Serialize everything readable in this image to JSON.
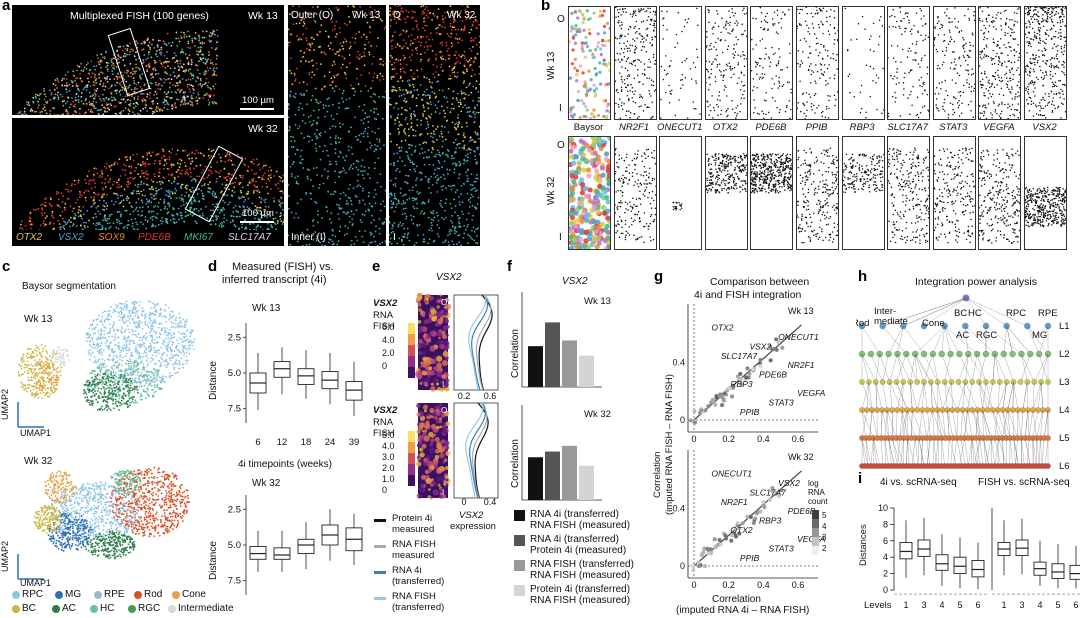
{
  "panel_labels": {
    "a": "a",
    "b": "b",
    "c": "c",
    "d": "d",
    "e": "e",
    "f": "f",
    "g": "g",
    "h": "h",
    "i": "i"
  },
  "colors": {
    "OTX2": "#e8c840",
    "VSX2": "#4aa0c8",
    "SOX9": "#e88a30",
    "PDE6B": "#d83a3a",
    "MKI67": "#40b890",
    "SLC17A7": "#e0d0e8",
    "RPC": "#8ec4e6",
    "MG": "#2f6fb0",
    "RPE": "#9ab8d8",
    "Rod": "#d8532a",
    "Cone": "#e8a040",
    "BC": "#c8b840",
    "AC": "#2e7d4a",
    "HC": "#6cc0a0",
    "RGC": "#4a9a50",
    "Intermediate": "#d8d8d8"
  },
  "panel_a": {
    "title": "Multiplexed FISH (100 genes)",
    "wk13": "Wk 13",
    "wk32": "Wk 32",
    "scale": "100 µm",
    "outer_label": "Outer (O)",
    "o_label": "O",
    "inner_label": "Inner (I)",
    "i_label": "I",
    "genes": [
      "OTX2",
      "VSX2",
      "SOX9",
      "PDE6B",
      "MKI67",
      "SLC17A7"
    ]
  },
  "panel_b": {
    "o": "O",
    "i": "I",
    "wk13": "Wk 13",
    "wk32": "Wk 32",
    "columns": [
      "Baysor",
      "NR2F1",
      "ONECUT1",
      "OTX2",
      "PDE6B",
      "PPIB",
      "RBP3",
      "SLC17A7",
      "STAT3",
      "VEGFA",
      "VSX2"
    ]
  },
  "panel_c": {
    "title": "Baysor segmentation",
    "wk13": "Wk 13",
    "wk32": "Wk 32",
    "umap1": "UMAP1",
    "umap2": "UMAP2",
    "legend": [
      "RPC",
      "MG",
      "RPE",
      "Rod",
      "Cone",
      "BC",
      "AC",
      "HC",
      "RGC",
      "Intermediate"
    ]
  },
  "panel_d": {
    "title1": "Measured (FISH) vs.",
    "title2": "inferred transcript (4i)",
    "wk13": "Wk 13",
    "wk32": "Wk 32",
    "ylabel": "Distance",
    "yticks": [
      "2.5",
      "5.0",
      "7.5"
    ],
    "x_categories": [
      "6",
      "12",
      "18",
      "24",
      "39"
    ],
    "xlabel": "4i timepoints (weeks)"
  },
  "panel_e": {
    "title": "VSX2",
    "wk13": "Wk 13",
    "wk32": "Wk 32",
    "rna_label_gene": "VSX2",
    "rna_label_1": "RNA",
    "rna_label_2": "FISH",
    "cb13": [
      "6.0",
      "4.0",
      "2.0",
      "0"
    ],
    "cb32": [
      "5.0",
      "4.0",
      "3.0",
      "2.0",
      "1.0",
      "0"
    ],
    "x13": [
      "0.2",
      "0.6"
    ],
    "x32": [
      "0",
      "0.4"
    ],
    "xlab_gene": "VSX2",
    "xlab": "expression",
    "corner_o": "O",
    "corner_i": "I",
    "legend": [
      "Protein 4i measured",
      "RNA FISH measured",
      "RNA 4i (transferred)",
      "RNA FISH (transferred)"
    ]
  },
  "panel_f": {
    "title": "VSX2",
    "wk13": "Wk 13",
    "wk32": "Wk 32",
    "ylabel": "Correlation",
    "legend": [
      "RNA 4i (transferred) RNA FISH (measured)",
      "RNA 4i (transferred) Protein 4i (measured)",
      "RNA FISH (transferred) RNA FISH (measured)",
      "Protein 4i (transferred) RNA FISH (measured)"
    ]
  },
  "panel_g": {
    "title1": "Comparison between",
    "title2": "4i and FISH integration",
    "wk13": "Wk 13",
    "wk32": "Wk 32",
    "ylabel1": "Correlation",
    "ylabel2": "(imputed RNA FISH – RNA FISH)",
    "xlabel1": "Correlation",
    "xlabel2": "(imputed RNA 4i – RNA FISH)",
    "ticks": [
      "0",
      "0.2",
      "0.4",
      "0.6"
    ],
    "yticks": [
      "0",
      "0.4"
    ],
    "cb_title": [
      "log",
      "RNA",
      "count"
    ],
    "cb_ticks": [
      "5",
      "4",
      "3",
      "2"
    ],
    "genes13": [
      "OTX2",
      "ONECUT1",
      "VSX2",
      "SLC17A7",
      "NR2F1",
      "PDE6B",
      "RBP3",
      "VEGFA",
      "STAT3",
      "PPIB"
    ],
    "genes32": [
      "ONECUT1",
      "VSX2",
      "SLC17A7",
      "NR2F1",
      "PDE6B",
      "RBP3",
      "OTX2",
      "VEGFA",
      "STAT3",
      "PPIB"
    ]
  },
  "panel_h": {
    "title": "Integration power analysis",
    "l1_nodes": [
      "Rod",
      "Inter-\nmediate",
      "Cone",
      "BC",
      "HC",
      "AC",
      "RGC",
      "RPC",
      "RPE",
      "MG"
    ],
    "levels": [
      "L1",
      "L2",
      "L3",
      "L4",
      "L5",
      "L6"
    ]
  },
  "panel_i": {
    "title_left": "4i vs. scRNA-seq",
    "title_right": "FISH vs. scRNA-seq",
    "ylabel": "Distances",
    "yticks": [
      "10",
      "8",
      "6",
      "4",
      "2",
      "0"
    ],
    "x_categories": [
      "1",
      "3",
      "4",
      "5",
      "6"
    ],
    "xlabel": "Levels"
  }
}
